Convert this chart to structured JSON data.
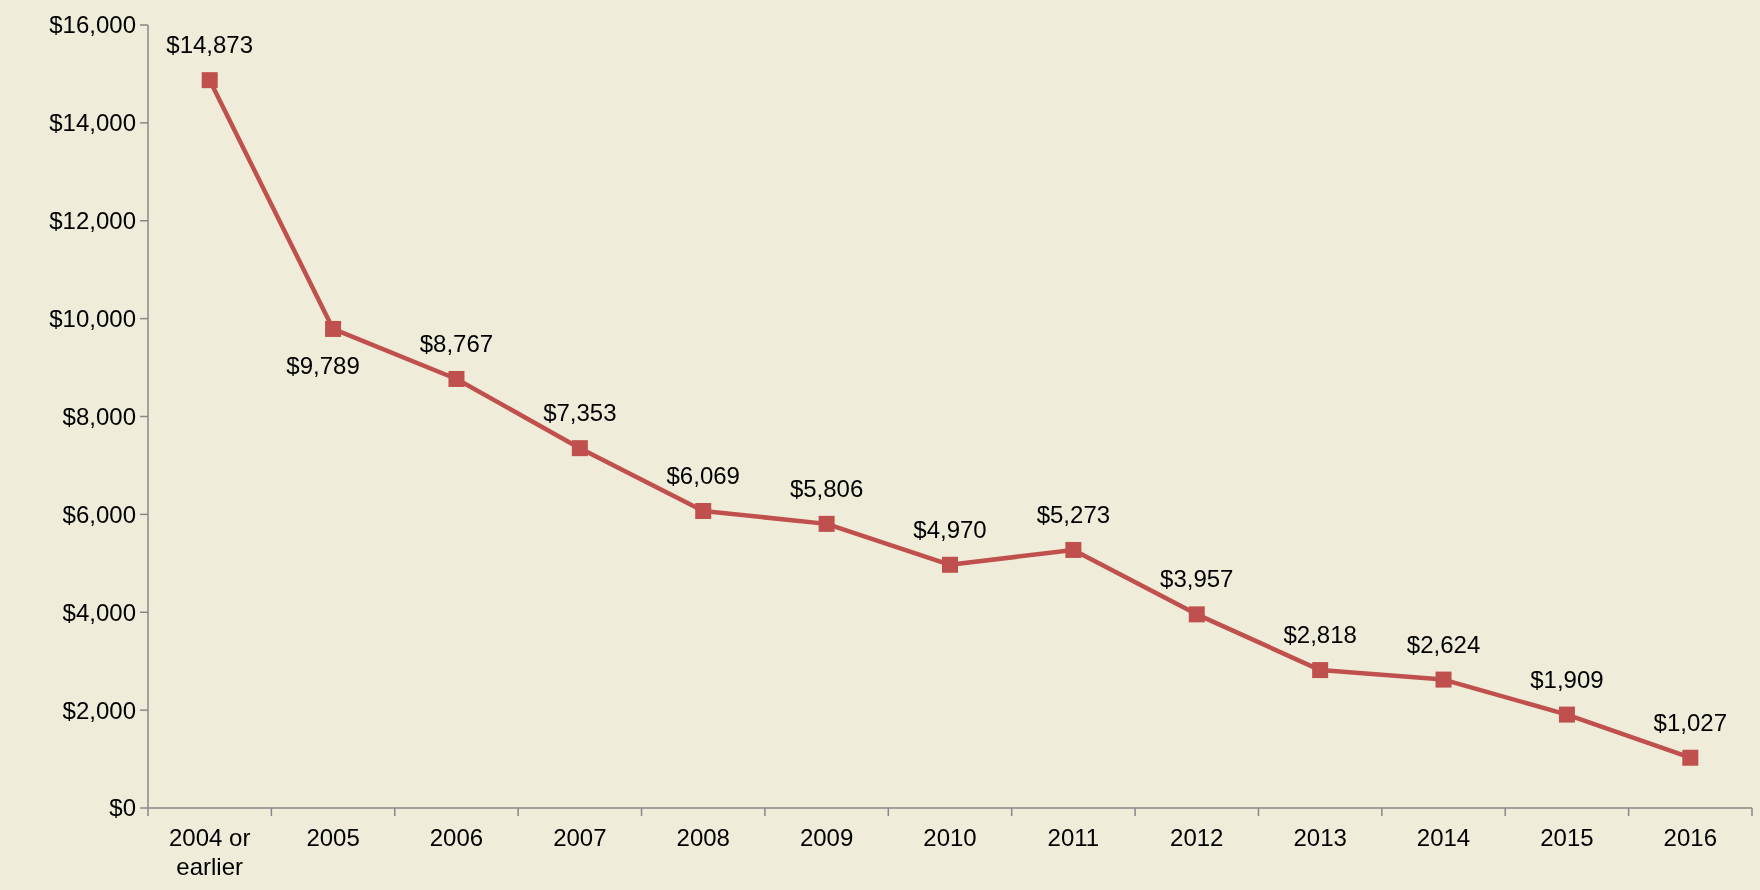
{
  "chart_data": {
    "type": "line",
    "categories": [
      "2004 or earlier",
      "2005",
      "2006",
      "2007",
      "2008",
      "2009",
      "2010",
      "2011",
      "2012",
      "2013",
      "2014",
      "2015",
      "2016"
    ],
    "series": [
      {
        "color": "#c0504d",
        "values": [
          14873,
          9789,
          8767,
          7353,
          6069,
          5806,
          4970,
          5273,
          3957,
          2818,
          2624,
          1909,
          1027
        ],
        "value_labels": [
          "$14,873",
          "$9,789",
          "$8,767",
          "$7,353",
          "$6,069",
          "$5,806",
          "$4,970",
          "$5,273",
          "$3,957",
          "$2,818",
          "$2,624",
          "$1,909",
          "$1,027"
        ]
      }
    ],
    "ylim": [
      0,
      16000
    ],
    "yticks": [
      {
        "value": 0,
        "label": "$0"
      },
      {
        "value": 2000,
        "label": "$2,000"
      },
      {
        "value": 4000,
        "label": "$4,000"
      },
      {
        "value": 6000,
        "label": "$6,000"
      },
      {
        "value": 8000,
        "label": "$8,000"
      },
      {
        "value": 10000,
        "label": "$10,000"
      },
      {
        "value": 12000,
        "label": "$12,000"
      },
      {
        "value": 14000,
        "label": "$14,000"
      },
      {
        "value": 16000,
        "label": "$16,000"
      }
    ],
    "marker": "square",
    "line_style": "solid",
    "grid": false
  }
}
